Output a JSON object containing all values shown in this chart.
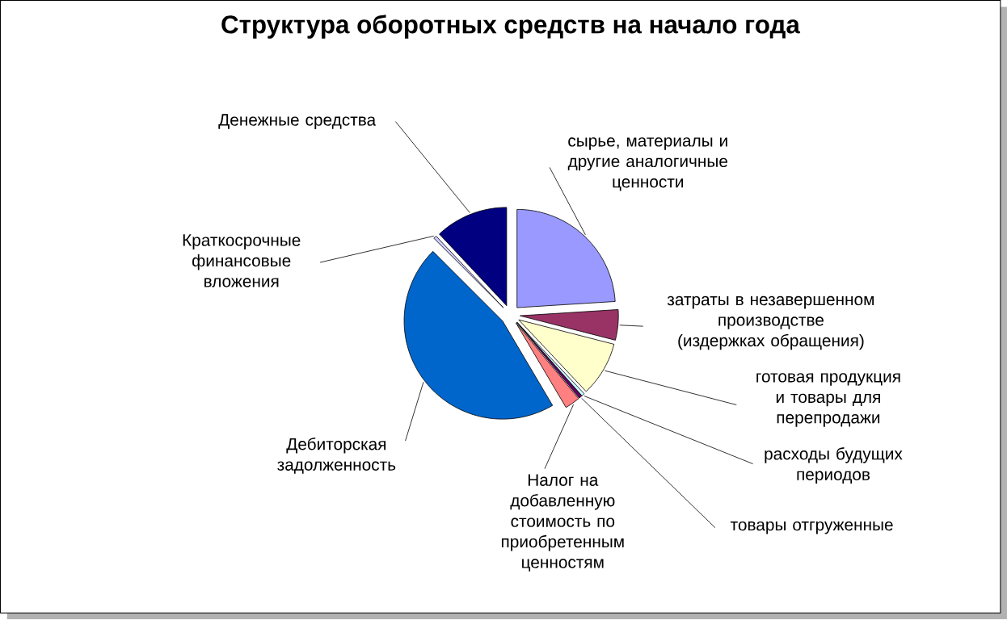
{
  "chart_data": {
    "type": "pie",
    "title": "Структура оборотных средств на начало года",
    "categories": [
      "сырье, материалы и другие аналогичные ценности",
      "затраты в незавершенном производстве (издержках обращения)",
      "готовая продукция и товары для перепродажи",
      "расходы будущих периодов",
      "товары отгруженные",
      "Налог на добавленную стоимость по приобретенным ценностям",
      "Дебиторская задолженность",
      "Краткосрочные финансовые вложения",
      "Денежные средства"
    ],
    "values": [
      24,
      5,
      9,
      0.5,
      0.5,
      2.5,
      46,
      0.5,
      12
    ],
    "colors": [
      "#9999ff",
      "#993366",
      "#ffffcc",
      "#ccffff",
      "#660066",
      "#ff8080",
      "#0066cc",
      "#ccccff",
      "#000080"
    ]
  }
}
